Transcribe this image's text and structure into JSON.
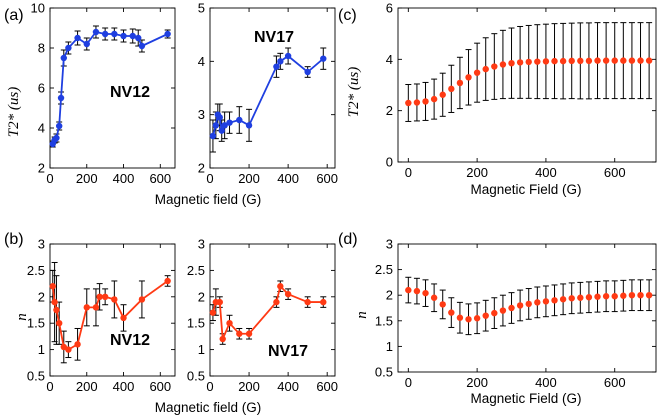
{
  "colors": {
    "blue": "#1f3fe0",
    "red": "#ff3a14",
    "errorbar": "#000000"
  },
  "xlabels": {
    "measured": "Magnetic field (G)",
    "simulated": "Magnetic Field (G)"
  },
  "ylabels": {
    "t2": "T2* (us)",
    "n": "n"
  },
  "chart_data": [
    {
      "id": "a1",
      "panel_label": "(a)",
      "annotation": "NV12",
      "type": "line",
      "color": "blue",
      "errorbars": true,
      "xlim": [
        0,
        680
      ],
      "ylim": [
        2,
        10
      ],
      "xticks": [
        0,
        200,
        400,
        600
      ],
      "yticks": [
        2,
        4,
        6,
        8,
        10
      ],
      "xlabel": "",
      "ylabel": "T2* (us)",
      "x": [
        15,
        25,
        35,
        50,
        60,
        75,
        100,
        150,
        200,
        250,
        300,
        350,
        400,
        450,
        480,
        500,
        640
      ],
      "y": [
        3.2,
        3.4,
        3.5,
        4.1,
        5.5,
        7.5,
        8.0,
        8.5,
        8.2,
        8.8,
        8.7,
        8.7,
        8.6,
        8.6,
        8.5,
        8.1,
        8.7
      ],
      "err": [
        0.15,
        0.15,
        0.2,
        0.2,
        0.3,
        0.4,
        0.3,
        0.35,
        0.3,
        0.3,
        0.3,
        0.3,
        0.3,
        0.35,
        0.4,
        0.3,
        0.2
      ]
    },
    {
      "id": "a2",
      "panel_label": "",
      "annotation": "NV17",
      "type": "line",
      "color": "blue",
      "errorbars": true,
      "xlim": [
        0,
        640
      ],
      "ylim": [
        2,
        5
      ],
      "xticks": [
        0,
        200,
        400,
        600
      ],
      "yticks": [
        2,
        3,
        4,
        5
      ],
      "xlabel": "",
      "ylabel": "",
      "x": [
        15,
        30,
        40,
        50,
        60,
        75,
        100,
        150,
        200,
        340,
        360,
        400,
        500,
        580
      ],
      "y": [
        2.6,
        2.8,
        3.0,
        2.95,
        2.7,
        2.8,
        2.85,
        2.9,
        2.8,
        3.9,
        4.0,
        4.1,
        3.8,
        4.05
      ],
      "err": [
        0.3,
        0.25,
        0.2,
        0.25,
        0.2,
        0.25,
        0.2,
        0.25,
        0.3,
        0.2,
        0.15,
        0.15,
        0.1,
        0.2
      ]
    },
    {
      "id": "b1",
      "panel_label": "(b)",
      "annotation": "NV12",
      "type": "line",
      "color": "red",
      "errorbars": true,
      "xlim": [
        0,
        680
      ],
      "ylim": [
        0.5,
        3
      ],
      "xticks": [
        0,
        200,
        400,
        600
      ],
      "yticks": [
        0.5,
        1,
        1.5,
        2,
        2.5,
        3
      ],
      "xlabel": "Magnetic field (G)",
      "ylabel": "n",
      "x": [
        15,
        25,
        35,
        50,
        75,
        100,
        150,
        200,
        250,
        270,
        300,
        350,
        400,
        500,
        640
      ],
      "y": [
        2.2,
        1.9,
        1.75,
        1.5,
        1.05,
        1.0,
        1.1,
        1.8,
        1.8,
        2.0,
        2.0,
        1.95,
        1.6,
        1.95,
        2.3
      ],
      "err": [
        0.3,
        0.75,
        0.65,
        0.4,
        0.3,
        0.15,
        0.3,
        0.35,
        0.35,
        0.25,
        0.15,
        0.35,
        0.25,
        0.35,
        0.1
      ]
    },
    {
      "id": "b2",
      "panel_label": "",
      "annotation": "NV17",
      "type": "line",
      "color": "red",
      "errorbars": true,
      "xlim": [
        0,
        640
      ],
      "ylim": [
        0.5,
        3
      ],
      "xticks": [
        0,
        200,
        400,
        600
      ],
      "yticks": [
        0.5,
        1,
        1.5,
        2,
        2.5,
        3
      ],
      "xlabel": "Magnetic field (G)",
      "ylabel": "",
      "x": [
        15,
        30,
        50,
        65,
        100,
        150,
        200,
        340,
        360,
        400,
        500,
        580
      ],
      "y": [
        1.7,
        1.9,
        1.9,
        1.2,
        1.5,
        1.3,
        1.3,
        1.9,
        2.2,
        2.05,
        1.9,
        1.9
      ],
      "err": [
        0.15,
        0.25,
        0.1,
        0.1,
        0.15,
        0.1,
        0.1,
        0.1,
        0.1,
        0.1,
        0.1,
        0.1
      ]
    },
    {
      "id": "c",
      "panel_label": "(c)",
      "annotation": "",
      "type": "scatter",
      "color": "red",
      "errorbars": true,
      "xlim": [
        -30,
        720
      ],
      "ylim": [
        0,
        6
      ],
      "xticks": [
        0,
        200,
        400,
        600
      ],
      "yticks": [
        0,
        2,
        4,
        6
      ],
      "xlabel": "Magnetic Field (G)",
      "ylabel": "T2* (us)",
      "x": [
        0,
        25,
        50,
        75,
        100,
        125,
        150,
        175,
        200,
        225,
        250,
        275,
        300,
        325,
        350,
        375,
        400,
        425,
        450,
        475,
        500,
        525,
        550,
        575,
        600,
        625,
        650,
        675,
        700
      ],
      "y": [
        2.3,
        2.32,
        2.36,
        2.45,
        2.62,
        2.85,
        3.08,
        3.3,
        3.48,
        3.62,
        3.72,
        3.8,
        3.85,
        3.88,
        3.9,
        3.91,
        3.92,
        3.93,
        3.93,
        3.94,
        3.94,
        3.94,
        3.95,
        3.95,
        3.95,
        3.95,
        3.95,
        3.95,
        3.95
      ],
      "err": [
        0.72,
        0.72,
        0.74,
        0.78,
        0.84,
        0.92,
        1.0,
        1.08,
        1.15,
        1.22,
        1.28,
        1.33,
        1.37,
        1.4,
        1.42,
        1.44,
        1.45,
        1.46,
        1.47,
        1.47,
        1.48,
        1.48,
        1.48,
        1.48,
        1.48,
        1.48,
        1.48,
        1.48,
        1.48
      ]
    },
    {
      "id": "d",
      "panel_label": "(d)",
      "annotation": "",
      "type": "scatter",
      "color": "red",
      "errorbars": true,
      "xlim": [
        -30,
        720
      ],
      "ylim": [
        0.5,
        3
      ],
      "xticks": [
        0,
        200,
        400,
        600
      ],
      "yticks": [
        0.5,
        1,
        1.5,
        2,
        2.5,
        3
      ],
      "xlabel": "Magnetic Field (G)",
      "ylabel": "n",
      "x": [
        0,
        25,
        50,
        75,
        100,
        125,
        150,
        175,
        200,
        225,
        250,
        275,
        300,
        325,
        350,
        375,
        400,
        425,
        450,
        475,
        500,
        525,
        550,
        575,
        600,
        625,
        650,
        675,
        700
      ],
      "y": [
        2.1,
        2.08,
        2.04,
        1.95,
        1.82,
        1.66,
        1.56,
        1.53,
        1.55,
        1.6,
        1.65,
        1.7,
        1.75,
        1.8,
        1.83,
        1.86,
        1.88,
        1.9,
        1.92,
        1.94,
        1.95,
        1.96,
        1.97,
        1.98,
        1.98,
        1.99,
        2.0,
        2.0,
        2.0
      ],
      "err": [
        0.25,
        0.25,
        0.26,
        0.27,
        0.28,
        0.29,
        0.3,
        0.3,
        0.3,
        0.3,
        0.3,
        0.3,
        0.3,
        0.3,
        0.3,
        0.3,
        0.3,
        0.3,
        0.3,
        0.3,
        0.3,
        0.3,
        0.3,
        0.3,
        0.3,
        0.3,
        0.3,
        0.3,
        0.3
      ]
    }
  ]
}
